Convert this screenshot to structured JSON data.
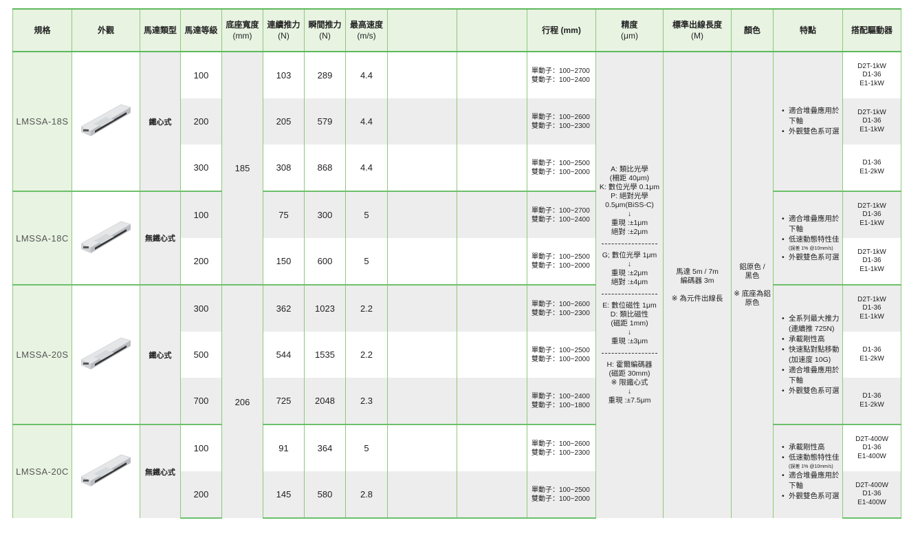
{
  "headers": {
    "spec": "規格",
    "appearance": "外觀",
    "motor_type": "馬達類型",
    "motor_grade": "馬達等級",
    "base_width": "底座寬度",
    "base_width_unit": "(mm)",
    "cont_force": "連續推力",
    "cont_force_unit": "(N)",
    "peak_force": "瞬間推力",
    "peak_force_unit": "(N)",
    "max_speed": "最高速度",
    "max_speed_unit": "(m/s)",
    "blank1": "",
    "blank2": "",
    "stroke": "行程 (mm)",
    "precision": "精度",
    "precision_unit": "(μm)",
    "cable": "標準出線長度",
    "cable_unit": "(M)",
    "color": "顏色",
    "features": "特點",
    "driver": "搭配驅動器"
  },
  "colors": {
    "border": "#8cc97a",
    "border_strong": "#5cb85c",
    "header_bg": "#e8f3e2",
    "shade": "#ededed"
  },
  "groups": [
    {
      "model": "LMSSA-18S",
      "motor_type": "鐵心式",
      "features": [
        {
          "text": "適合堆疊應用於下軸"
        },
        {
          "text": "外觀雙色系可選"
        }
      ],
      "rows": [
        {
          "grade": "100",
          "cont": "103",
          "peak": "289",
          "vmax": "4.4",
          "stroke": [
            "單動子：100~2700",
            "雙動子：100~2400"
          ],
          "driver": [
            "D2T-1kW",
            "D1-36",
            "E1-1kW"
          ]
        },
        {
          "grade": "200",
          "cont": "205",
          "peak": "579",
          "vmax": "4.4",
          "stroke": [
            "單動子：100~2600",
            "雙動子：100~2300"
          ],
          "driver": [
            "D2T-1kW",
            "D1-36",
            "E1-1kW"
          ]
        },
        {
          "grade": "300",
          "cont": "308",
          "peak": "868",
          "vmax": "4.4",
          "stroke": [
            "單動子：100~2500",
            "雙動子：100~2000"
          ],
          "driver": [
            "D1-36",
            "E1-2kW"
          ]
        }
      ]
    },
    {
      "model": "LMSSA-18C",
      "motor_type": "無鐵心式",
      "features": [
        {
          "text": "適合堆疊應用於下軸"
        },
        {
          "text": "低速動態特性佳",
          "note": "(誤差 1% @10mm/s)"
        },
        {
          "text": "外觀雙色系可選"
        }
      ],
      "rows": [
        {
          "grade": "100",
          "cont": "75",
          "peak": "300",
          "vmax": "5",
          "stroke": [
            "單動子：100~2700",
            "雙動子：100~2400"
          ],
          "driver": [
            "D2T-1kW",
            "D1-36",
            "E1-1kW"
          ]
        },
        {
          "grade": "200",
          "cont": "150",
          "peak": "600",
          "vmax": "5",
          "stroke": [
            "單動子：100~2500",
            "雙動子：100~2000"
          ],
          "driver": [
            "D2T-1kW",
            "D1-36",
            "E1-1kW"
          ]
        }
      ]
    },
    {
      "model": "LMSSA-20S",
      "motor_type": "鐵心式",
      "features": [
        {
          "text": "全系列最大推力(連續推 725N)"
        },
        {
          "text": "承載剛性高"
        },
        {
          "text": "快速點對點移動(加速度 10G)"
        },
        {
          "text": "適合堆疊應用於下軸"
        },
        {
          "text": "外觀雙色系可選"
        }
      ],
      "rows": [
        {
          "grade": "300",
          "cont": "362",
          "peak": "1023",
          "vmax": "2.2",
          "stroke": [
            "單動子：100~2600",
            "雙動子：100~2300"
          ],
          "driver": [
            "D2T-1kW",
            "D1-36",
            "E1-1kW"
          ]
        },
        {
          "grade": "500",
          "cont": "544",
          "peak": "1535",
          "vmax": "2.2",
          "stroke": [
            "單動子：100~2500",
            "雙動子：100~2000"
          ],
          "driver": [
            "D1-36",
            "E1-2kW"
          ]
        },
        {
          "grade": "700",
          "cont": "725",
          "peak": "2048",
          "vmax": "2.3",
          "stroke": [
            "單動子：100~2400",
            "雙動子：100~1800"
          ],
          "driver": [
            "D1-36",
            "E1-2kW"
          ]
        }
      ]
    },
    {
      "model": "LMSSA-20C",
      "motor_type": "無鐵心式",
      "features": [
        {
          "text": "承載剛性高"
        },
        {
          "text": "低速動態特性佳",
          "note": "(誤差 1% @10mm/s)"
        },
        {
          "text": "適合堆疊應用於下軸"
        },
        {
          "text": "外觀雙色系可選"
        }
      ],
      "rows": [
        {
          "grade": "100",
          "cont": "91",
          "peak": "364",
          "vmax": "5",
          "stroke": [
            "單動子：100~2600",
            "雙動子：100~2300"
          ],
          "driver": [
            "D2T-400W",
            "D1-36",
            "E1-400W"
          ]
        },
        {
          "grade": "200",
          "cont": "145",
          "peak": "580",
          "vmax": "2.8",
          "stroke": [
            "單動子：100~2500",
            "雙動子：100~2000"
          ],
          "driver": [
            "D2T-400W",
            "D1-36",
            "E1-400W"
          ]
        }
      ]
    }
  ],
  "base_widths": [
    {
      "value": "185",
      "groups": [
        0,
        1
      ]
    },
    {
      "value": "206",
      "groups": [
        2,
        3
      ]
    }
  ],
  "precision": [
    [
      "A: 類比光學",
      "(柵距 40μm)",
      "K: 數位光學 0.1μm",
      "P: 絕對光學",
      "0.5μm(BiSS-C)",
      "↓",
      "重現 :±1μm",
      "絕對 :±2μm"
    ],
    [
      "G; 數位光學 1μm",
      "↓",
      "重現 :±2μm",
      "絕對 :±4μm"
    ],
    [
      "E: 數位磁性 1μm",
      "D: 類比磁性",
      "(磁距 1mm)",
      "↓",
      "重現 :±3μm"
    ],
    [
      "H: 霍爾編碼器",
      "(磁距 30mm)",
      "※ 限鐵心式",
      "↓",
      "重現 :±7.5μm"
    ]
  ],
  "cable": [
    "馬達 5m / 7m",
    "編碼器 3m",
    "",
    "※ 為元件出線長"
  ],
  "color": [
    "鋁原色 /",
    "黑色",
    "",
    "※ 底座為鋁",
    "原色"
  ]
}
